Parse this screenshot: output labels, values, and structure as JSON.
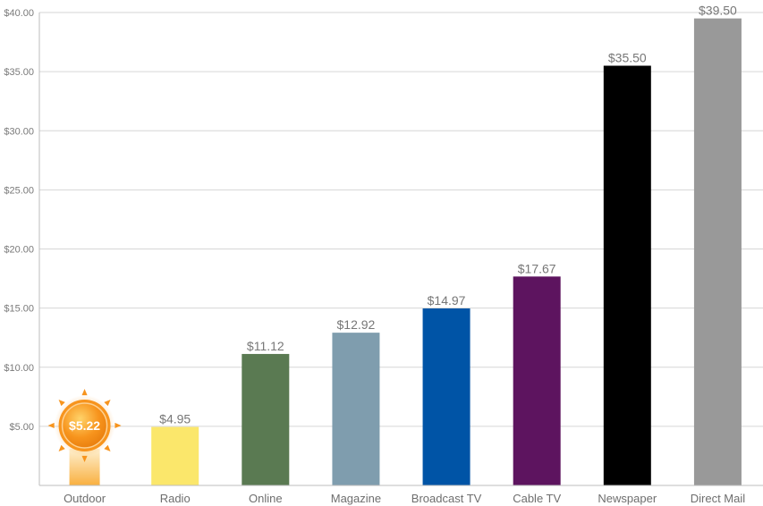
{
  "chart_data": {
    "type": "bar",
    "categories": [
      "Outdoor",
      "Radio",
      "Online",
      "Magazine",
      "Broadcast TV",
      "Cable TV",
      "Newspaper",
      "Direct Mail"
    ],
    "values": [
      5.22,
      4.95,
      11.12,
      12.92,
      14.97,
      17.67,
      35.5,
      39.5
    ],
    "data_labels": [
      "$5.22",
      "$4.95",
      "$11.12",
      "$12.92",
      "$14.97",
      "$17.67",
      "$35.50",
      "$39.50"
    ],
    "bar_colors": [
      "#f7941d",
      "#fbe76b",
      "#5a7a52",
      "#7f9dae",
      "#0054a6",
      "#5d145f",
      "#000000",
      "#999999"
    ],
    "highlight_category": "Outdoor",
    "highlight_icon": "sun-icon",
    "ylim": [
      0,
      40
    ],
    "yticks": [
      {
        "value": 5,
        "label": "$5.00"
      },
      {
        "value": 10,
        "label": "$10.00"
      },
      {
        "value": 15,
        "label": "$15.00"
      },
      {
        "value": 20,
        "label": "$20.00"
      },
      {
        "value": 25,
        "label": "$25.00"
      },
      {
        "value": 30,
        "label": "$30.00"
      },
      {
        "value": 35,
        "label": "$35.00"
      },
      {
        "value": 40,
        "label": "$40.00"
      }
    ],
    "grid": true,
    "legend": "none"
  }
}
